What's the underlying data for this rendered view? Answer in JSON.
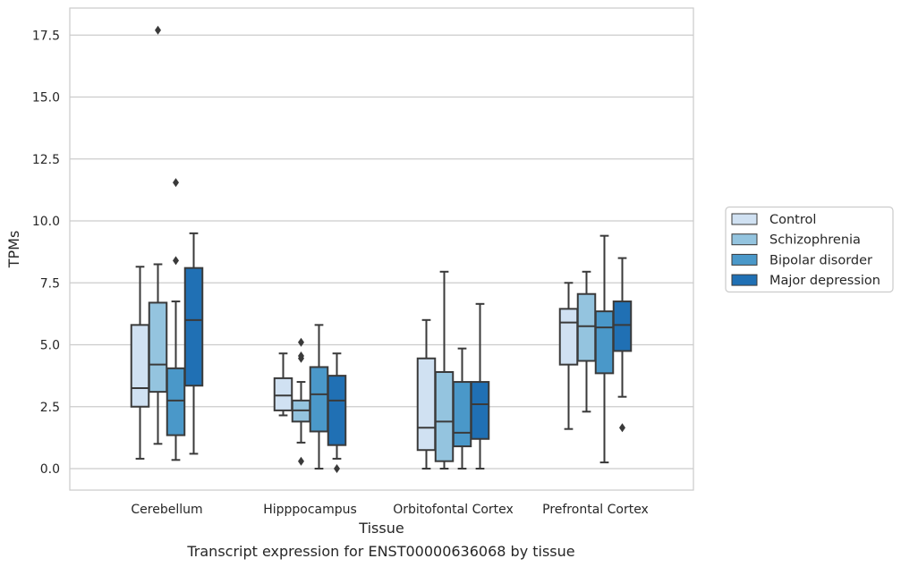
{
  "caption": "Transcript expression for ENST00000636068 by tissue",
  "chart_data": {
    "type": "box",
    "xlabel": "Tissue",
    "ylabel": "TPMs",
    "ylim": [
      -0.85,
      18.5
    ],
    "yticks": [
      0.0,
      2.5,
      5.0,
      7.5,
      10.0,
      12.5,
      15.0,
      17.5
    ],
    "ytick_labels": [
      "0.0",
      "2.5",
      "5.0",
      "7.5",
      "10.0",
      "12.5",
      "15.0",
      "17.5"
    ],
    "grid": true,
    "categories": [
      "Cerebellum",
      "Hipppocampus",
      "Orbitofontal Cortex",
      "Prefrontal Cortex"
    ],
    "legend_position": "right",
    "series": [
      {
        "name": "Control",
        "color": "#d0e1f2",
        "boxes": [
          {
            "whislo": 0.4,
            "q1": 2.5,
            "med": 3.25,
            "q3": 5.8,
            "whishi": 8.15,
            "fliers": []
          },
          {
            "whislo": 2.15,
            "q1": 2.35,
            "med": 2.95,
            "q3": 3.65,
            "whishi": 4.65,
            "fliers": []
          },
          {
            "whislo": 0.0,
            "q1": 0.75,
            "med": 1.65,
            "q3": 4.45,
            "whishi": 6.0,
            "fliers": []
          },
          {
            "whislo": 1.6,
            "q1": 4.2,
            "med": 5.9,
            "q3": 6.45,
            "whishi": 7.5,
            "fliers": []
          }
        ]
      },
      {
        "name": "Schizophrenia",
        "color": "#94c4df",
        "boxes": [
          {
            "whislo": 1.0,
            "q1": 3.1,
            "med": 4.2,
            "q3": 6.7,
            "whishi": 8.25,
            "fliers": [
              17.7
            ]
          },
          {
            "whislo": 1.05,
            "q1": 1.9,
            "med": 2.35,
            "q3": 2.75,
            "whishi": 3.5,
            "fliers": [
              0.3,
              4.45,
              4.55,
              5.1
            ]
          },
          {
            "whislo": 0.0,
            "q1": 0.3,
            "med": 1.9,
            "q3": 3.9,
            "whishi": 7.95,
            "fliers": []
          },
          {
            "whislo": 2.3,
            "q1": 4.35,
            "med": 5.75,
            "q3": 7.05,
            "whishi": 7.95,
            "fliers": []
          }
        ]
      },
      {
        "name": "Bipolar disorder",
        "color": "#4a98c9",
        "boxes": [
          {
            "whislo": 0.35,
            "q1": 1.35,
            "med": 2.75,
            "q3": 4.05,
            "whishi": 6.75,
            "fliers": [
              8.4,
              11.55
            ]
          },
          {
            "whislo": 0.0,
            "q1": 1.5,
            "med": 3.0,
            "q3": 4.1,
            "whishi": 5.8,
            "fliers": []
          },
          {
            "whislo": 0.0,
            "q1": 0.9,
            "med": 1.45,
            "q3": 3.5,
            "whishi": 4.85,
            "fliers": []
          },
          {
            "whislo": 0.25,
            "q1": 3.85,
            "med": 5.7,
            "q3": 6.35,
            "whishi": 9.4,
            "fliers": []
          }
        ]
      },
      {
        "name": "Major depression",
        "color": "#2070b4",
        "boxes": [
          {
            "whislo": 0.6,
            "q1": 3.35,
            "med": 6.0,
            "q3": 8.1,
            "whishi": 9.5,
            "fliers": []
          },
          {
            "whislo": 0.4,
            "q1": 0.95,
            "med": 2.75,
            "q3": 3.75,
            "whishi": 4.65,
            "fliers": [
              0.0
            ]
          },
          {
            "whislo": 0.0,
            "q1": 1.2,
            "med": 2.6,
            "q3": 3.5,
            "whishi": 6.65,
            "fliers": []
          },
          {
            "whislo": 2.9,
            "q1": 4.75,
            "med": 5.8,
            "q3": 6.75,
            "whishi": 8.5,
            "fliers": [
              1.65
            ]
          }
        ]
      }
    ]
  }
}
